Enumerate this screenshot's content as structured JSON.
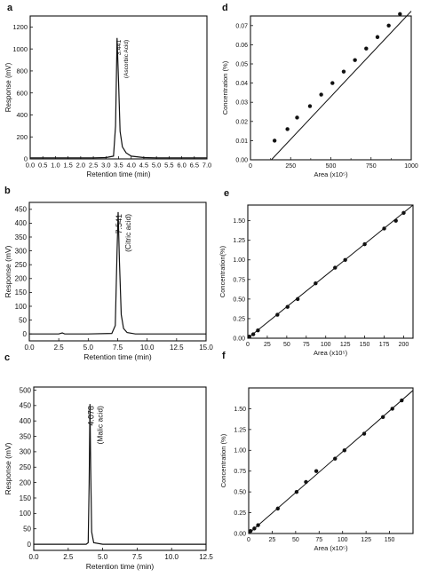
{
  "chart_data": [
    {
      "panel": "a",
      "type": "line",
      "xlabel": "Retention time (min)",
      "ylabel": "Response (mV)",
      "xlim": [
        0,
        7
      ],
      "ylim": [
        0,
        1300
      ],
      "x_ticks": [
        "0.0",
        "0.5",
        "1.0",
        "1.5",
        "2.0",
        "2.5",
        "3.0",
        "3.5",
        "4.0",
        "4.5",
        "5.0",
        "5.5",
        "6.0",
        "6.5",
        "7.0"
      ],
      "y_ticks": [
        "0",
        "200",
        "400",
        "600",
        "800",
        "1000",
        "1200"
      ],
      "x_tick_values": [
        0,
        0.5,
        1,
        1.5,
        2,
        2.5,
        3,
        3.5,
        4,
        4.5,
        5,
        5.5,
        6,
        6.5,
        7
      ],
      "y_tick_values": [
        0,
        200,
        400,
        600,
        800,
        1000,
        1200
      ],
      "peak": {
        "time_label": "3.441",
        "name": "(Ascorbic Acid)",
        "x": 3.441,
        "height": 1100
      },
      "series": [
        {
          "x": [
            0,
            1.0,
            1.5,
            2.0,
            2.5,
            3.0,
            3.3,
            3.38,
            3.441,
            3.5,
            3.56,
            3.65,
            3.8,
            4.0,
            4.5,
            5.0,
            5.5,
            6.0,
            6.5,
            7.0
          ],
          "y": [
            10,
            10,
            10,
            10,
            10,
            12,
            25,
            300,
            1100,
            700,
            250,
            110,
            55,
            25,
            12,
            10,
            10,
            10,
            10,
            10
          ]
        }
      ]
    },
    {
      "panel": "b",
      "type": "line",
      "xlabel": "Retention time (min)",
      "ylabel": "Response (mV)",
      "xlim": [
        0,
        15
      ],
      "ylim": [
        -25,
        475
      ],
      "x_ticks": [
        "0.0",
        "2.5",
        "5.0",
        "7.5",
        "10.0",
        "12.5",
        "15.0"
      ],
      "y_ticks": [
        "0",
        "50",
        "100",
        "150",
        "200",
        "250",
        "300",
        "350",
        "400",
        "450"
      ],
      "x_tick_values": [
        0,
        2.5,
        5,
        7.5,
        10,
        12.5,
        15
      ],
      "y_tick_values": [
        0,
        50,
        100,
        150,
        200,
        250,
        300,
        350,
        400,
        450
      ],
      "peak": {
        "time_label": "7.541",
        "name": "(Citric acid)",
        "x": 7.541,
        "height": 440
      },
      "series": [
        {
          "x": [
            0,
            2.5,
            2.8,
            3.0,
            5.0,
            7.0,
            7.3,
            7.45,
            7.541,
            7.65,
            7.8,
            8.0,
            8.3,
            9.0,
            10.0,
            12.5,
            15.0
          ],
          "y": [
            0,
            0,
            4,
            0,
            0,
            2,
            30,
            300,
            440,
            260,
            70,
            20,
            5,
            0,
            0,
            0,
            0
          ]
        }
      ]
    },
    {
      "panel": "c",
      "type": "line",
      "xlabel": "Retention time (min)",
      "ylabel": "Response (mV)",
      "xlim": [
        0,
        12.5
      ],
      "ylim": [
        -20,
        510
      ],
      "x_ticks": [
        "0.0",
        "2.5",
        "5.0",
        "7.5",
        "10.0",
        "12.5"
      ],
      "y_ticks": [
        "0",
        "50",
        "100",
        "150",
        "200",
        "250",
        "300",
        "350",
        "400",
        "450",
        "500"
      ],
      "x_tick_values": [
        0,
        2.5,
        5,
        7.5,
        10,
        12.5
      ],
      "y_tick_values": [
        0,
        50,
        100,
        150,
        200,
        250,
        300,
        350,
        400,
        450,
        500
      ],
      "peak": {
        "time_label": "4.078",
        "name": "(Malic acid)",
        "x": 4.078,
        "height": 455
      },
      "series": [
        {
          "x": [
            0,
            2.5,
            3.8,
            3.95,
            4.02,
            4.078,
            4.13,
            4.2,
            4.35,
            5.0,
            7.5,
            10.0,
            12.5
          ],
          "y": [
            0,
            0,
            0,
            5,
            200,
            455,
            250,
            40,
            5,
            0,
            0,
            0,
            0
          ]
        }
      ]
    },
    {
      "panel": "d",
      "type": "scatter",
      "xlabel": "Area (x10⁵)",
      "ylabel": "Concentration (%)",
      "xlim": [
        0,
        1000
      ],
      "ylim": [
        0,
        0.075
      ],
      "x_ticks": [
        "0",
        "250",
        "500",
        "750",
        "1000"
      ],
      "y_ticks": [
        "0.00",
        "0.01",
        "0.02",
        "0.03",
        "0.04",
        "0.05",
        "0.06",
        "0.07"
      ],
      "x_tick_values": [
        0,
        250,
        500,
        750,
        1000
      ],
      "y_tick_values": [
        0,
        0.01,
        0.02,
        0.03,
        0.04,
        0.05,
        0.06,
        0.07
      ],
      "x_minor_tick_values": [
        125,
        375,
        625,
        875
      ],
      "points": {
        "x": [
          150,
          230,
          290,
          370,
          440,
          510,
          580,
          650,
          720,
          790,
          860,
          930
        ],
        "y": [
          0.01,
          0.016,
          0.022,
          0.028,
          0.034,
          0.04,
          0.046,
          0.052,
          0.058,
          0.064,
          0.07,
          0.076
        ]
      },
      "fit": {
        "x": [
          130,
          1000
        ],
        "y": [
          0.0,
          0.0775
        ]
      }
    },
    {
      "panel": "e",
      "type": "scatter",
      "xlabel": "Area (x10⁵)",
      "ylabel": "Concentration(%)",
      "xlim": [
        0,
        212
      ],
      "ylim": [
        0,
        1.7
      ],
      "x_ticks": [
        "0",
        "25",
        "50",
        "75",
        "100",
        "125",
        "150",
        "175",
        "200"
      ],
      "y_ticks": [
        "0.00",
        "0.25",
        "0.50",
        "0.75",
        "1.00",
        "1.25",
        "1.50"
      ],
      "x_tick_values": [
        0,
        25,
        50,
        75,
        100,
        125,
        150,
        175,
        200
      ],
      "y_tick_values": [
        0,
        0.25,
        0.5,
        0.75,
        1.0,
        1.25,
        1.5
      ],
      "points": {
        "x": [
          2,
          7,
          13,
          38,
          51,
          64,
          87,
          112,
          125,
          150,
          175,
          190,
          200
        ],
        "y": [
          0.02,
          0.05,
          0.1,
          0.3,
          0.4,
          0.5,
          0.7,
          0.9,
          1.0,
          1.2,
          1.4,
          1.5,
          1.6
        ]
      },
      "fit": {
        "x": [
          0,
          212
        ],
        "y": [
          0.0,
          1.7
        ]
      }
    },
    {
      "panel": "f",
      "type": "scatter",
      "xlabel": "Area (x10⁵)",
      "ylabel": "Concentration (%)",
      "xlim": [
        0,
        175
      ],
      "ylim": [
        0,
        1.75
      ],
      "x_ticks": [
        "0",
        "25",
        "50",
        "75",
        "100",
        "125",
        "150"
      ],
      "y_ticks": [
        "0.00",
        "0.25",
        "0.50",
        "0.75",
        "1.00",
        "1.25",
        "1.50"
      ],
      "x_tick_values": [
        0,
        25,
        50,
        75,
        100,
        125,
        150
      ],
      "y_tick_values": [
        0,
        0.25,
        0.5,
        0.75,
        1.0,
        1.25,
        1.5
      ],
      "points": {
        "x": [
          2,
          6,
          10,
          31,
          51,
          61,
          72,
          92,
          102,
          123,
          143,
          153,
          163
        ],
        "y": [
          0.03,
          0.06,
          0.1,
          0.3,
          0.5,
          0.62,
          0.75,
          0.9,
          1.0,
          1.2,
          1.4,
          1.5,
          1.6
        ]
      },
      "fit": {
        "x": [
          0,
          175
        ],
        "y": [
          0.0,
          1.72
        ]
      }
    }
  ]
}
